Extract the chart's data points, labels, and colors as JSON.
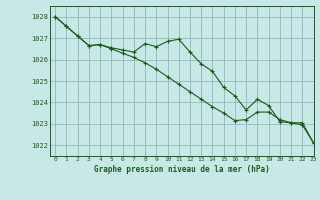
{
  "title": "Graphe pression niveau de la mer (hPa)",
  "background_color": "#c8e8e8",
  "grid_color": "#90b8b8",
  "line_color": "#1a5c1a",
  "xlim": [
    -0.5,
    23
  ],
  "ylim": [
    1021.5,
    1028.5
  ],
  "yticks": [
    1022,
    1023,
    1024,
    1025,
    1026,
    1027,
    1028
  ],
  "xticks": [
    0,
    1,
    2,
    3,
    4,
    5,
    6,
    7,
    8,
    9,
    10,
    11,
    12,
    13,
    14,
    15,
    16,
    17,
    18,
    19,
    20,
    21,
    22,
    23
  ],
  "series1_x": [
    0,
    1,
    2,
    3,
    4,
    5,
    6,
    7,
    8,
    9,
    10,
    11,
    12,
    13,
    14,
    15,
    16,
    17,
    18,
    19,
    20,
    21,
    22,
    23
  ],
  "series1_y": [
    1028.0,
    1027.55,
    1027.1,
    1026.65,
    1026.7,
    1026.55,
    1026.45,
    1026.35,
    1026.75,
    1026.6,
    1026.85,
    1026.95,
    1026.35,
    1025.8,
    1025.45,
    1024.7,
    1024.3,
    1023.65,
    1024.15,
    1023.85,
    1023.1,
    1023.05,
    1023.05,
    1022.1
  ],
  "series2_x": [
    0,
    1,
    2,
    3,
    4,
    5,
    6,
    7,
    8,
    9,
    10,
    11,
    12,
    13,
    14,
    15,
    16,
    17,
    18,
    19,
    20,
    21,
    22,
    23
  ],
  "series2_y": [
    1028.0,
    1027.55,
    1027.1,
    1026.65,
    1026.7,
    1026.5,
    1026.3,
    1026.1,
    1025.85,
    1025.55,
    1025.2,
    1024.85,
    1024.5,
    1024.15,
    1023.8,
    1023.5,
    1023.15,
    1023.2,
    1023.55,
    1023.55,
    1023.2,
    1023.05,
    1022.95,
    1022.1
  ]
}
